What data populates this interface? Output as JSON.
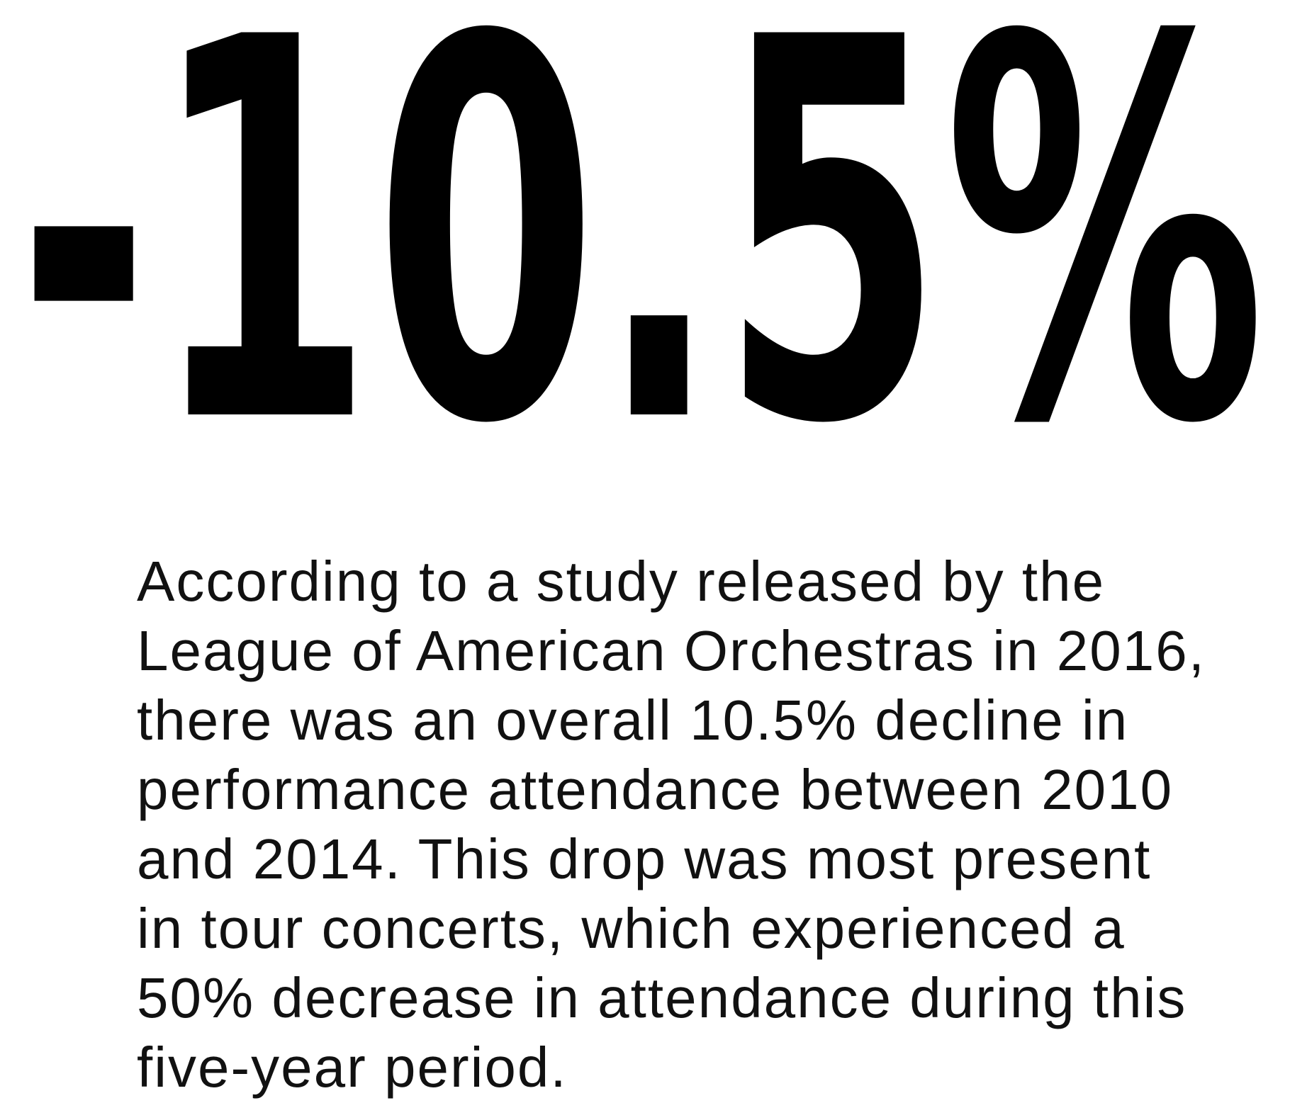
{
  "headline": "-10.5%",
  "body": {
    "lines": [
      "According to a study released by the",
      "League of American Orchestras in 2016,",
      "there was an overall 10.5% decline in",
      "performance attendance between 2010",
      "and 2014. This drop was most present",
      "in tour concerts, which experienced a",
      "50% decrease in attendance during this",
      "five-year period."
    ]
  }
}
